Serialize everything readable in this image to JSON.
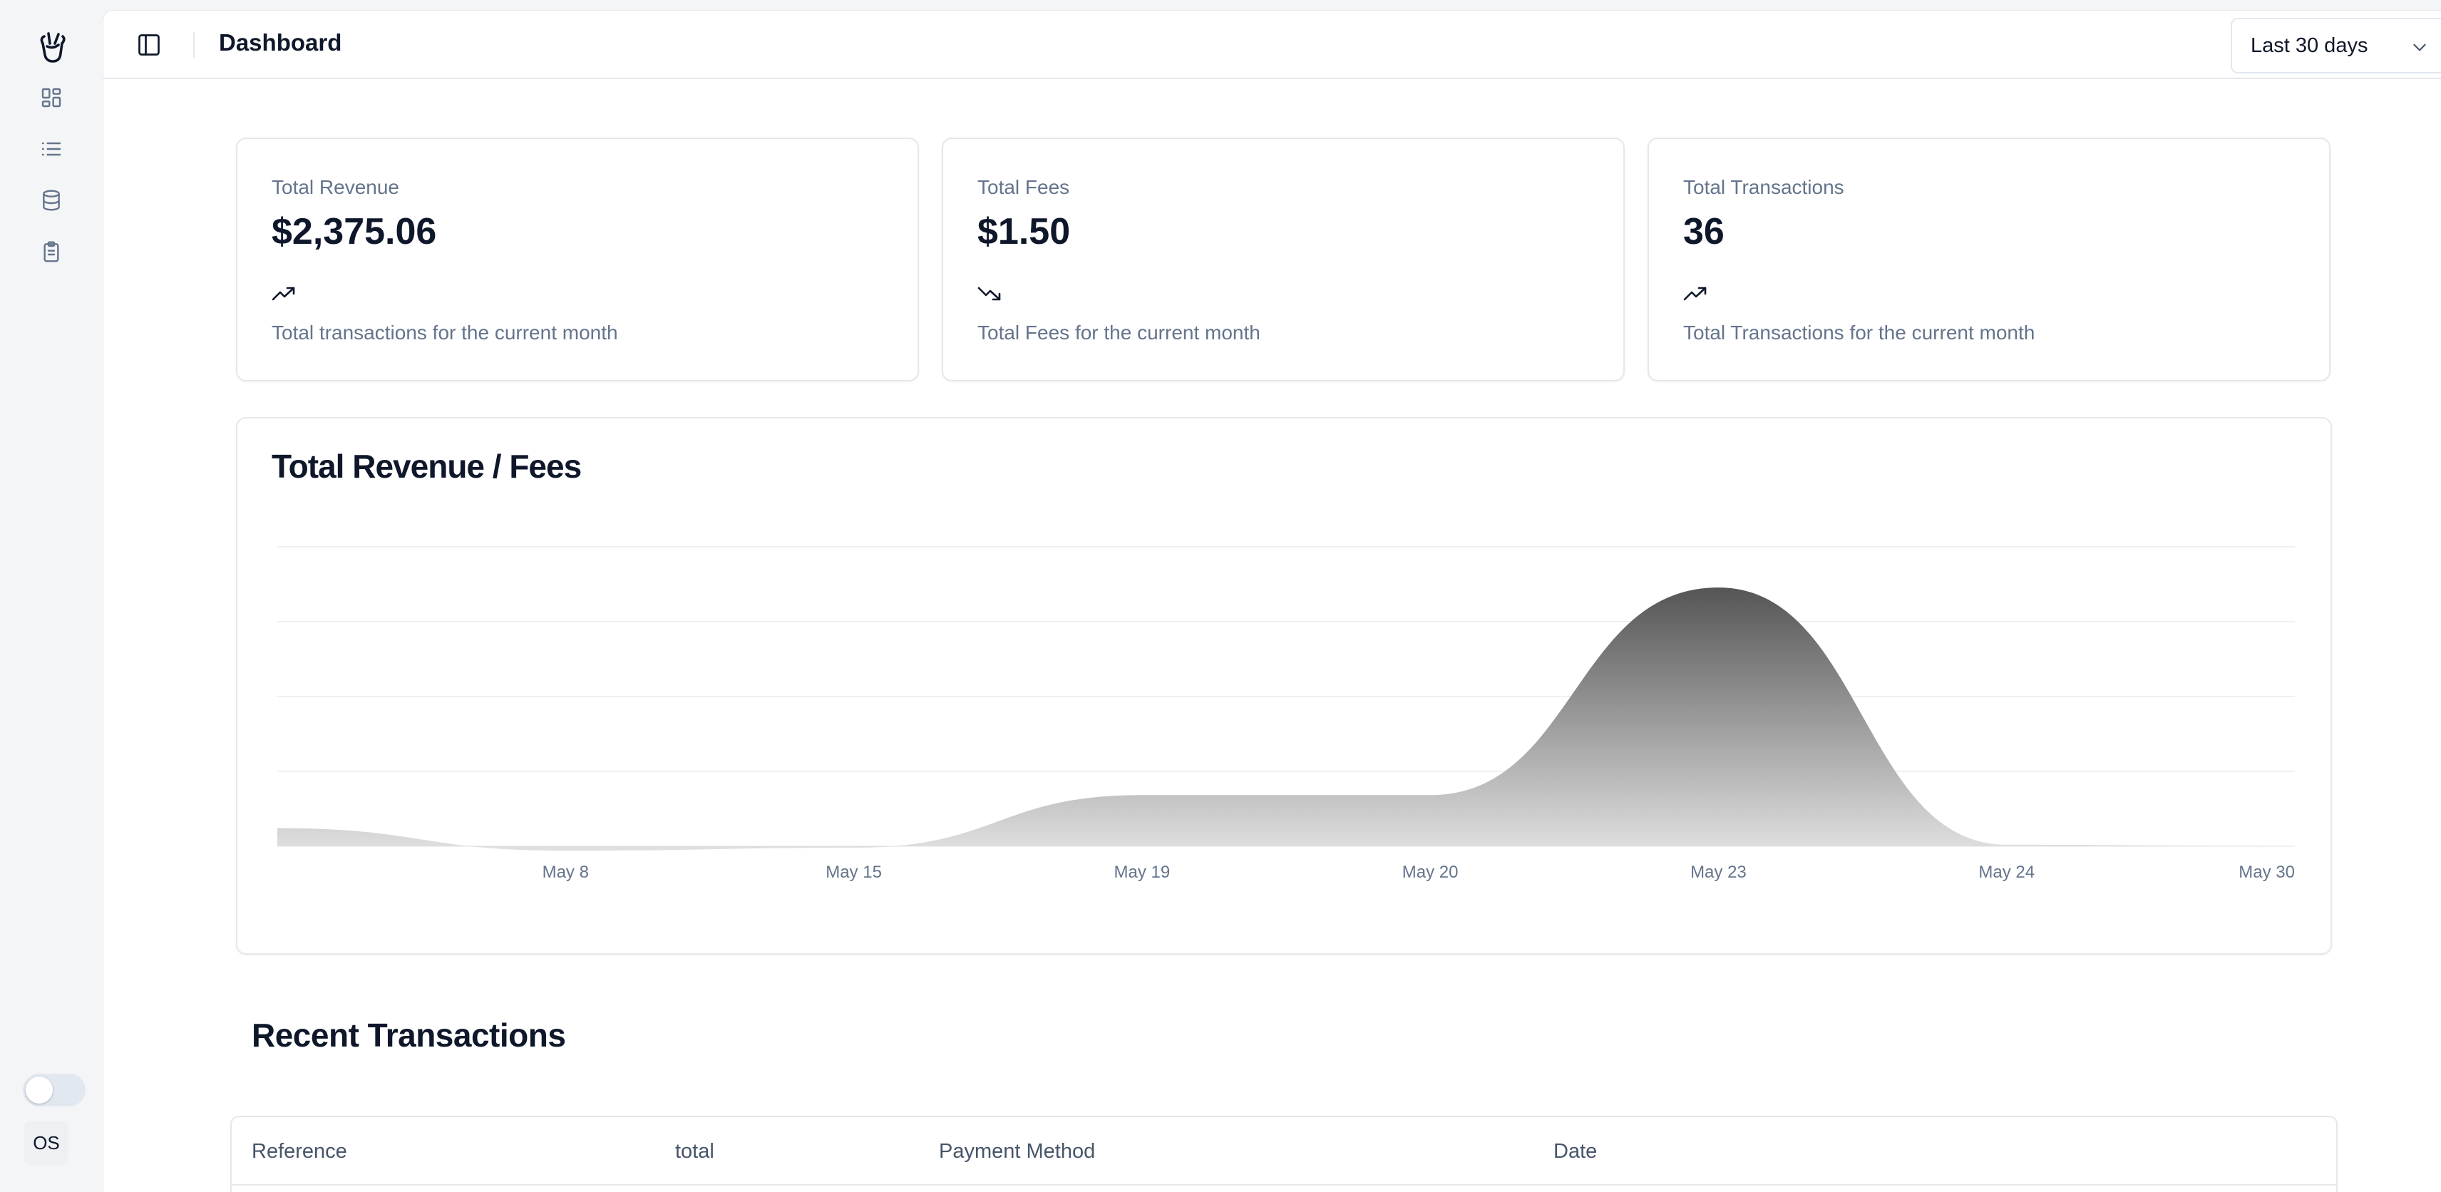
{
  "header": {
    "title": "Dashboard",
    "date_range": "Last 30 days"
  },
  "sidebar": {
    "items": [
      {
        "icon": "dashboard-icon"
      },
      {
        "icon": "list-icon"
      },
      {
        "icon": "database-icon"
      },
      {
        "icon": "clipboard-icon"
      }
    ],
    "theme_toggle_on": false,
    "avatar_initials": "OS"
  },
  "stats": [
    {
      "label": "Total Revenue",
      "value": "$2,375.06",
      "trend": "up",
      "desc": "Total transactions for the current month"
    },
    {
      "label": "Total Fees",
      "value": "$1.50",
      "trend": "down",
      "desc": "Total Fees for the current month"
    },
    {
      "label": "Total Transactions",
      "value": "36",
      "trend": "up",
      "desc": "Total Transactions for the current month"
    }
  ],
  "chart": {
    "title": "Total Revenue / Fees"
  },
  "chart_data": {
    "type": "area",
    "categories": [
      "",
      "May 8",
      "May 15",
      "May 19",
      "May 20",
      "May 23",
      "May 24",
      "May 30"
    ],
    "series": [
      {
        "values": [
          60,
          -15,
          -5,
          170,
          170,
          860,
          5,
          0
        ]
      }
    ],
    "ylim": [
      -150,
      1000
    ],
    "grid": true,
    "legend": "none",
    "fill_gradient": [
      "#555555",
      "#e0e0e0"
    ]
  },
  "recent": {
    "title": "Recent Transactions",
    "columns": [
      "Reference",
      "total",
      "Payment Method",
      "Date"
    ]
  },
  "colors": {
    "muted_text": "#64748b",
    "border": "#e5e7eb",
    "ink": "#0f172a"
  }
}
